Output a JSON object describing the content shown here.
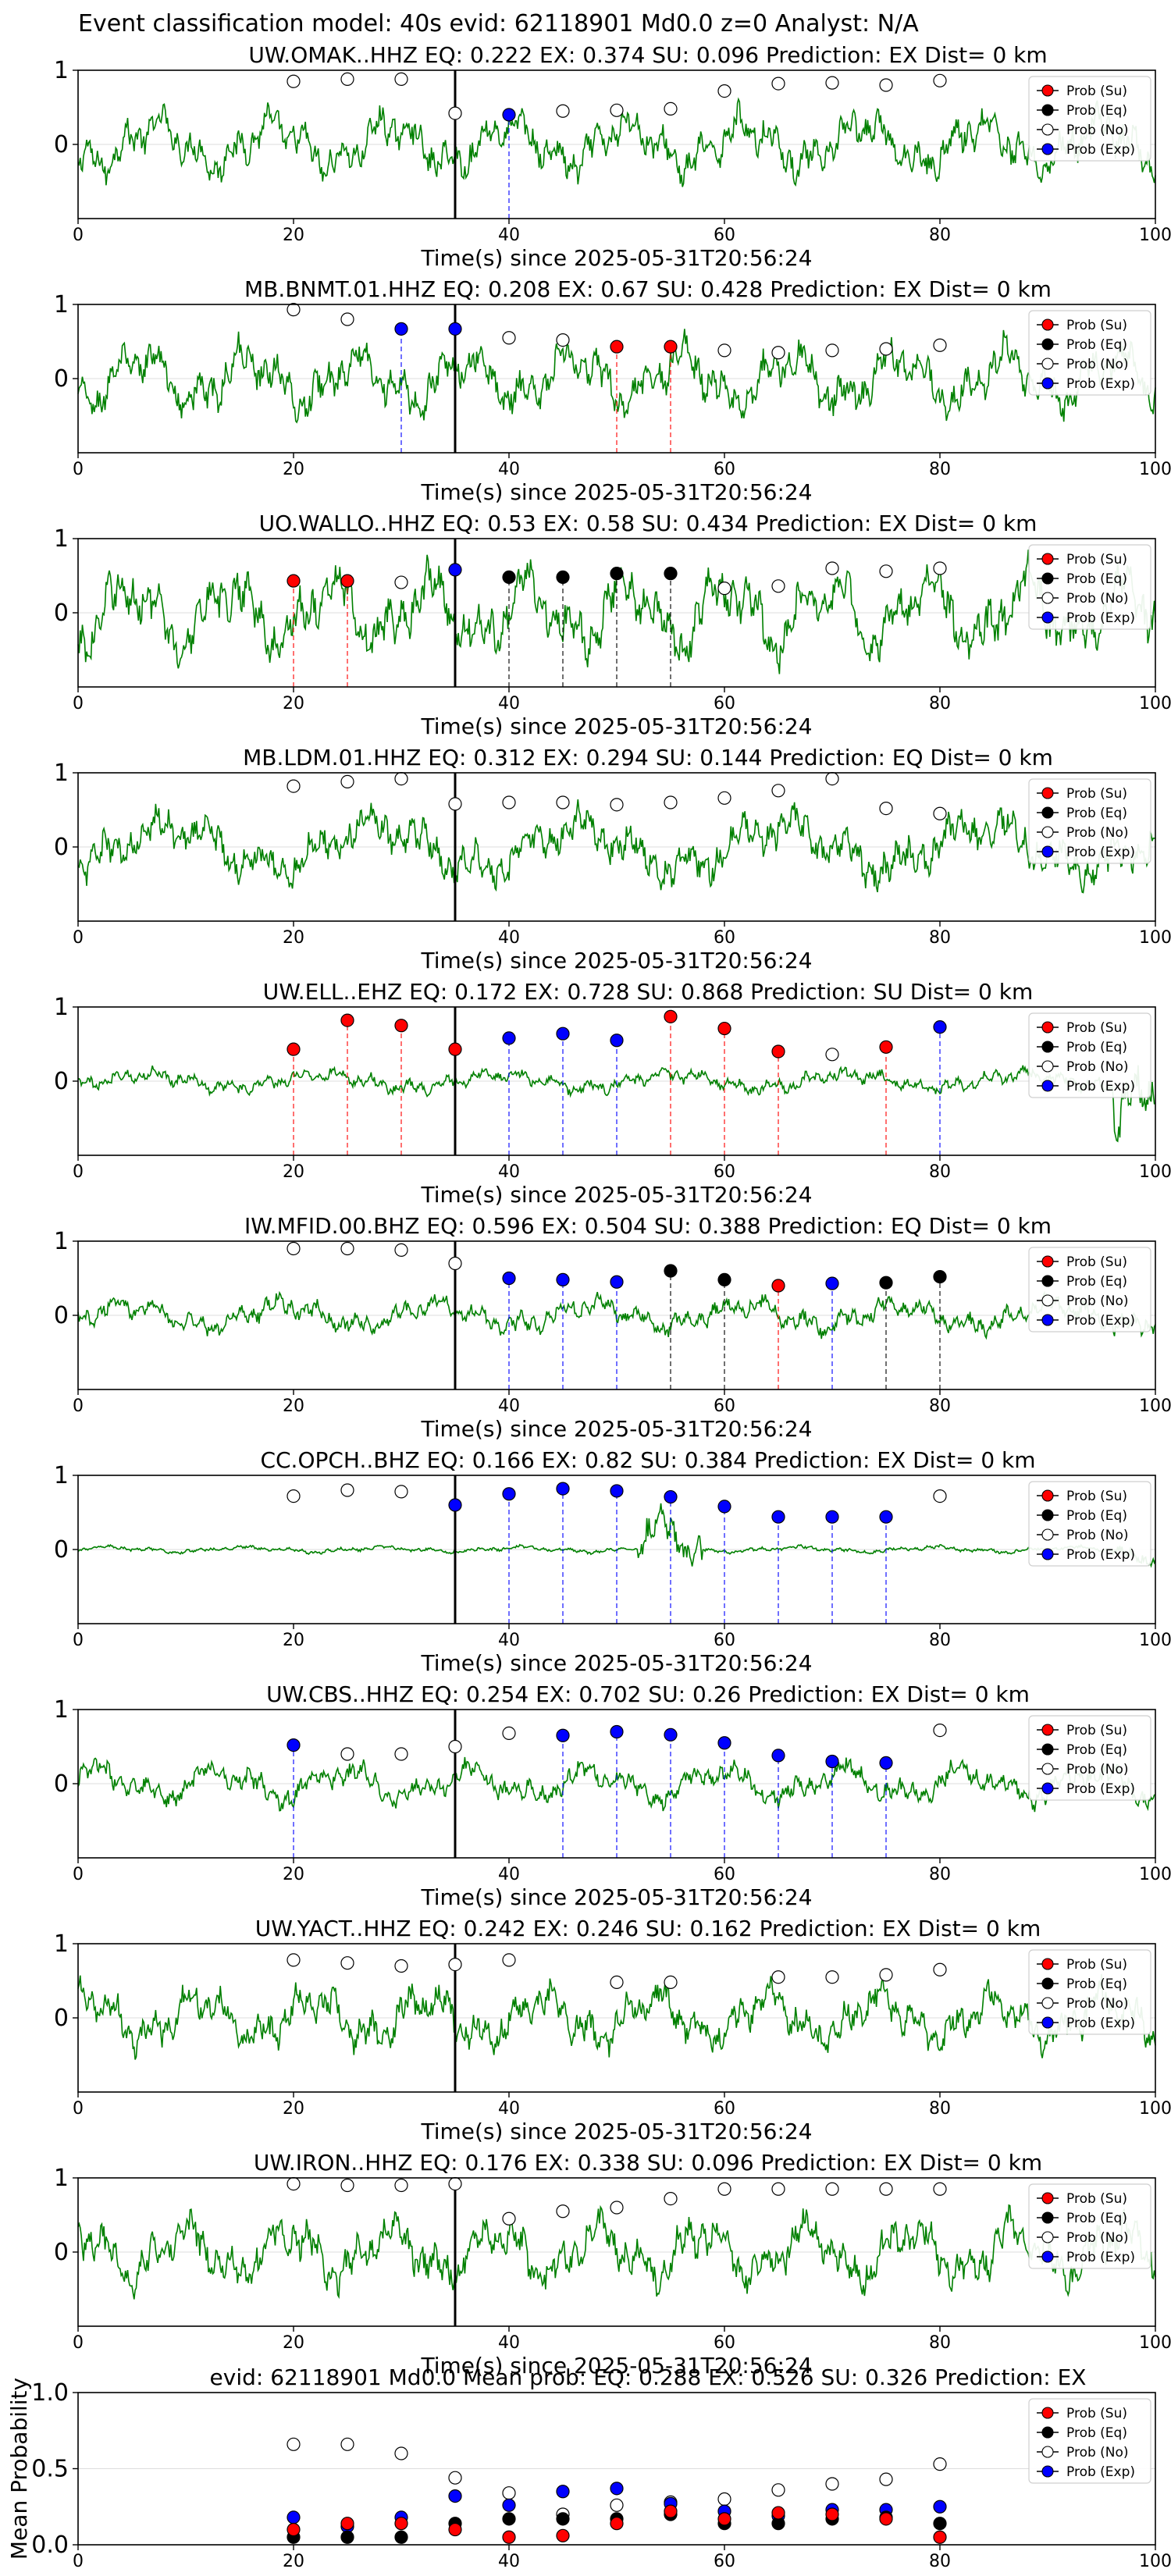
{
  "suptitle": "Event classification model: 40s evid: 62118901 Md0.0 z=0 Analyst: N/A",
  "legend_labels": [
    "Prob (Su)",
    "Prob (Eq)",
    "Prob (No)",
    "Prob (Exp)"
  ],
  "colors": {
    "waveform": "#008000",
    "su": "#ff0000",
    "eq": "#000000",
    "no": "#ffffff",
    "exp": "#0000ff",
    "grid": "#dddddd"
  },
  "chart_data": [
    {
      "type": "line",
      "title": "UW.OMAK..HHZ   EQ: 0.222  EX: 0.374  SU: 0.096   Prediction: EX    Dist= 0 km",
      "xlabel": "Time(s) since 2025-05-31T20:56:24",
      "xlim": [
        0,
        100
      ],
      "ylim": [
        -1,
        1
      ],
      "xticks": [
        0,
        20,
        40,
        60,
        80,
        100
      ],
      "yticks": [
        0,
        1
      ],
      "grid": "horizontal",
      "legend": "top-right",
      "waveform_scale": 0.55,
      "event_line_x": 35,
      "points": [
        {
          "x": 20,
          "y": 0.85,
          "cls": "no"
        },
        {
          "x": 25,
          "y": 0.88,
          "cls": "no"
        },
        {
          "x": 30,
          "y": 0.88,
          "cls": "no"
        },
        {
          "x": 35,
          "y": 0.42,
          "cls": "no"
        },
        {
          "x": 40,
          "y": 0.4,
          "cls": "exp"
        },
        {
          "x": 45,
          "y": 0.45,
          "cls": "no"
        },
        {
          "x": 50,
          "y": 0.46,
          "cls": "no"
        },
        {
          "x": 55,
          "y": 0.48,
          "cls": "no"
        },
        {
          "x": 60,
          "y": 0.72,
          "cls": "no"
        },
        {
          "x": 65,
          "y": 0.82,
          "cls": "no"
        },
        {
          "x": 70,
          "y": 0.83,
          "cls": "no"
        },
        {
          "x": 75,
          "y": 0.8,
          "cls": "no"
        },
        {
          "x": 80,
          "y": 0.86,
          "cls": "no"
        }
      ]
    },
    {
      "type": "line",
      "title": "MB.BNMT.01.HHZ   EQ: 0.208  EX: 0.67  SU: 0.428   Prediction: EX    Dist= 0 km",
      "xlabel": "Time(s) since 2025-05-31T20:56:24",
      "xlim": [
        0,
        100
      ],
      "ylim": [
        -1,
        1
      ],
      "xticks": [
        0,
        20,
        40,
        60,
        80,
        100
      ],
      "yticks": [
        0,
        1
      ],
      "grid": "horizontal",
      "legend": "top-right",
      "waveform_scale": 0.6,
      "event_line_x": 35,
      "points": [
        {
          "x": 20,
          "y": 0.93,
          "cls": "no"
        },
        {
          "x": 25,
          "y": 0.8,
          "cls": "no"
        },
        {
          "x": 30,
          "y": 0.67,
          "cls": "exp"
        },
        {
          "x": 35,
          "y": 0.67,
          "cls": "exp"
        },
        {
          "x": 40,
          "y": 0.55,
          "cls": "no"
        },
        {
          "x": 45,
          "y": 0.52,
          "cls": "no"
        },
        {
          "x": 50,
          "y": 0.43,
          "cls": "su"
        },
        {
          "x": 55,
          "y": 0.43,
          "cls": "su"
        },
        {
          "x": 60,
          "y": 0.38,
          "cls": "no"
        },
        {
          "x": 65,
          "y": 0.35,
          "cls": "no"
        },
        {
          "x": 70,
          "y": 0.38,
          "cls": "no"
        },
        {
          "x": 75,
          "y": 0.4,
          "cls": "no"
        },
        {
          "x": 80,
          "y": 0.45,
          "cls": "no"
        }
      ]
    },
    {
      "type": "line",
      "title": "UO.WALLO..HHZ   EQ: 0.53  EX: 0.58  SU: 0.434   Prediction: EX    Dist= 0 km",
      "xlabel": "Time(s) since 2025-05-31T20:56:24",
      "xlim": [
        0,
        100
      ],
      "ylim": [
        -1,
        1
      ],
      "xticks": [
        0,
        20,
        40,
        60,
        80,
        100
      ],
      "yticks": [
        0,
        1
      ],
      "grid": "horizontal",
      "legend": "top-right",
      "waveform_scale": 0.75,
      "event_line_x": 35,
      "points": [
        {
          "x": 20,
          "y": 0.43,
          "cls": "su"
        },
        {
          "x": 25,
          "y": 0.43,
          "cls": "su"
        },
        {
          "x": 30,
          "y": 0.41,
          "cls": "no"
        },
        {
          "x": 35,
          "y": 0.58,
          "cls": "exp"
        },
        {
          "x": 40,
          "y": 0.48,
          "cls": "eq"
        },
        {
          "x": 45,
          "y": 0.48,
          "cls": "eq"
        },
        {
          "x": 50,
          "y": 0.53,
          "cls": "eq"
        },
        {
          "x": 55,
          "y": 0.53,
          "cls": "eq"
        },
        {
          "x": 60,
          "y": 0.33,
          "cls": "no"
        },
        {
          "x": 65,
          "y": 0.36,
          "cls": "no"
        },
        {
          "x": 70,
          "y": 0.6,
          "cls": "no"
        },
        {
          "x": 75,
          "y": 0.56,
          "cls": "no"
        },
        {
          "x": 80,
          "y": 0.6,
          "cls": "no"
        }
      ]
    },
    {
      "type": "line",
      "title": "MB.LDM.01.HHZ   EQ: 0.312  EX: 0.294  SU: 0.144   Prediction: EQ    Dist= 0 km",
      "xlabel": "Time(s) since 2025-05-31T20:56:24",
      "xlim": [
        0,
        100
      ],
      "ylim": [
        -1,
        1
      ],
      "xticks": [
        0,
        20,
        40,
        60,
        80,
        100
      ],
      "yticks": [
        0,
        1
      ],
      "grid": "horizontal",
      "legend": "top-right",
      "waveform_scale": 0.6,
      "event_line_x": 35,
      "points": [
        {
          "x": 20,
          "y": 0.82,
          "cls": "no"
        },
        {
          "x": 25,
          "y": 0.88,
          "cls": "no"
        },
        {
          "x": 30,
          "y": 0.92,
          "cls": "no"
        },
        {
          "x": 35,
          "y": 0.58,
          "cls": "no"
        },
        {
          "x": 40,
          "y": 0.6,
          "cls": "no"
        },
        {
          "x": 45,
          "y": 0.6,
          "cls": "no"
        },
        {
          "x": 50,
          "y": 0.57,
          "cls": "no"
        },
        {
          "x": 55,
          "y": 0.6,
          "cls": "no"
        },
        {
          "x": 60,
          "y": 0.66,
          "cls": "no"
        },
        {
          "x": 65,
          "y": 0.76,
          "cls": "no"
        },
        {
          "x": 70,
          "y": 0.92,
          "cls": "no"
        },
        {
          "x": 75,
          "y": 0.52,
          "cls": "no"
        },
        {
          "x": 80,
          "y": 0.45,
          "cls": "no"
        }
      ]
    },
    {
      "type": "line",
      "title": "UW.ELL..EHZ   EQ: 0.172  EX: 0.728  SU: 0.868   Prediction: SU    Dist= 0 km",
      "xlabel": "Time(s) since 2025-05-31T20:56:24",
      "xlim": [
        0,
        100
      ],
      "ylim": [
        -1,
        1
      ],
      "xticks": [
        0,
        20,
        40,
        60,
        80,
        100
      ],
      "yticks": [
        0,
        1
      ],
      "grid": "horizontal",
      "legend": "top-right",
      "waveform_scale": 0.2,
      "event_line_x": 35,
      "points": [
        {
          "x": 20,
          "y": 0.43,
          "cls": "su"
        },
        {
          "x": 25,
          "y": 0.82,
          "cls": "su"
        },
        {
          "x": 30,
          "y": 0.75,
          "cls": "su"
        },
        {
          "x": 35,
          "y": 0.43,
          "cls": "su"
        },
        {
          "x": 40,
          "y": 0.58,
          "cls": "exp"
        },
        {
          "x": 45,
          "y": 0.64,
          "cls": "exp"
        },
        {
          "x": 50,
          "y": 0.55,
          "cls": "exp"
        },
        {
          "x": 55,
          "y": 0.87,
          "cls": "su"
        },
        {
          "x": 60,
          "y": 0.71,
          "cls": "su"
        },
        {
          "x": 65,
          "y": 0.4,
          "cls": "su"
        },
        {
          "x": 70,
          "y": 0.36,
          "cls": "no"
        },
        {
          "x": 75,
          "y": 0.46,
          "cls": "su"
        },
        {
          "x": 80,
          "y": 0.73,
          "cls": "exp"
        }
      ]
    },
    {
      "type": "line",
      "title": "IW.MFID.00.BHZ   EQ: 0.596  EX: 0.504  SU: 0.388   Prediction: EQ    Dist= 0 km",
      "xlabel": "Time(s) since 2025-05-31T20:56:24",
      "xlim": [
        0,
        100
      ],
      "ylim": [
        -1,
        1
      ],
      "xticks": [
        0,
        20,
        40,
        60,
        80,
        100
      ],
      "yticks": [
        0,
        1
      ],
      "grid": "horizontal",
      "legend": "top-right",
      "waveform_scale": 0.3,
      "event_line_x": 35,
      "points": [
        {
          "x": 20,
          "y": 0.9,
          "cls": "no"
        },
        {
          "x": 25,
          "y": 0.9,
          "cls": "no"
        },
        {
          "x": 30,
          "y": 0.88,
          "cls": "no"
        },
        {
          "x": 35,
          "y": 0.7,
          "cls": "no"
        },
        {
          "x": 40,
          "y": 0.5,
          "cls": "exp"
        },
        {
          "x": 45,
          "y": 0.48,
          "cls": "exp"
        },
        {
          "x": 50,
          "y": 0.45,
          "cls": "exp"
        },
        {
          "x": 55,
          "y": 0.6,
          "cls": "eq"
        },
        {
          "x": 60,
          "y": 0.48,
          "cls": "eq"
        },
        {
          "x": 65,
          "y": 0.4,
          "cls": "su"
        },
        {
          "x": 70,
          "y": 0.43,
          "cls": "exp"
        },
        {
          "x": 75,
          "y": 0.44,
          "cls": "eq"
        },
        {
          "x": 80,
          "y": 0.52,
          "cls": "eq"
        }
      ]
    },
    {
      "type": "line",
      "title": "CC.OPCH..BHZ   EQ: 0.166  EX: 0.82  SU: 0.384   Prediction: EX    Dist= 0 km",
      "xlabel": "Time(s) since 2025-05-31T20:56:24",
      "xlim": [
        0,
        100
      ],
      "ylim": [
        -1,
        1
      ],
      "xticks": [
        0,
        20,
        40,
        60,
        80,
        100
      ],
      "yticks": [
        0,
        1
      ],
      "grid": "horizontal",
      "legend": "top-right",
      "waveform_scale": 0.06,
      "event_line_x": 35,
      "points": [
        {
          "x": 20,
          "y": 0.72,
          "cls": "no"
        },
        {
          "x": 25,
          "y": 0.8,
          "cls": "no"
        },
        {
          "x": 30,
          "y": 0.78,
          "cls": "no"
        },
        {
          "x": 35,
          "y": 0.6,
          "cls": "exp"
        },
        {
          "x": 40,
          "y": 0.75,
          "cls": "exp"
        },
        {
          "x": 45,
          "y": 0.82,
          "cls": "exp"
        },
        {
          "x": 50,
          "y": 0.79,
          "cls": "exp"
        },
        {
          "x": 55,
          "y": 0.71,
          "cls": "exp"
        },
        {
          "x": 60,
          "y": 0.58,
          "cls": "exp"
        },
        {
          "x": 65,
          "y": 0.44,
          "cls": "exp"
        },
        {
          "x": 70,
          "y": 0.44,
          "cls": "exp"
        },
        {
          "x": 75,
          "y": 0.44,
          "cls": "exp"
        },
        {
          "x": 80,
          "y": 0.72,
          "cls": "no"
        }
      ]
    },
    {
      "type": "line",
      "title": "UW.CBS..HHZ   EQ: 0.254  EX: 0.702  SU: 0.26   Prediction: EX    Dist= 0 km",
      "xlabel": "Time(s) since 2025-05-31T20:56:24",
      "xlim": [
        0,
        100
      ],
      "ylim": [
        -1,
        1
      ],
      "xticks": [
        0,
        20,
        40,
        60,
        80,
        100
      ],
      "yticks": [
        0,
        1
      ],
      "grid": "horizontal",
      "legend": "top-right",
      "waveform_scale": 0.35,
      "event_line_x": 35,
      "points": [
        {
          "x": 20,
          "y": 0.52,
          "cls": "exp"
        },
        {
          "x": 25,
          "y": 0.4,
          "cls": "no"
        },
        {
          "x": 30,
          "y": 0.4,
          "cls": "no"
        },
        {
          "x": 35,
          "y": 0.5,
          "cls": "no"
        },
        {
          "x": 40,
          "y": 0.68,
          "cls": "no"
        },
        {
          "x": 45,
          "y": 0.65,
          "cls": "exp"
        },
        {
          "x": 50,
          "y": 0.7,
          "cls": "exp"
        },
        {
          "x": 55,
          "y": 0.66,
          "cls": "exp"
        },
        {
          "x": 60,
          "y": 0.55,
          "cls": "exp"
        },
        {
          "x": 65,
          "y": 0.38,
          "cls": "exp"
        },
        {
          "x": 70,
          "y": 0.3,
          "cls": "exp"
        },
        {
          "x": 75,
          "y": 0.28,
          "cls": "exp"
        },
        {
          "x": 80,
          "y": 0.72,
          "cls": "no"
        }
      ]
    },
    {
      "type": "line",
      "title": "UW.YACT..HHZ   EQ: 0.242  EX: 0.246  SU: 0.162   Prediction: EX    Dist= 0 km",
      "xlabel": "Time(s) since 2025-05-31T20:56:24",
      "xlim": [
        0,
        100
      ],
      "ylim": [
        -1,
        1
      ],
      "xticks": [
        0,
        20,
        40,
        60,
        80,
        100
      ],
      "yticks": [
        0,
        1
      ],
      "grid": "horizontal",
      "legend": "top-right",
      "waveform_scale": 0.55,
      "event_line_x": 35,
      "points": [
        {
          "x": 20,
          "y": 0.78,
          "cls": "no"
        },
        {
          "x": 25,
          "y": 0.74,
          "cls": "no"
        },
        {
          "x": 30,
          "y": 0.7,
          "cls": "no"
        },
        {
          "x": 35,
          "y": 0.72,
          "cls": "no"
        },
        {
          "x": 40,
          "y": 0.78,
          "cls": "no"
        },
        {
          "x": 50,
          "y": 0.48,
          "cls": "no"
        },
        {
          "x": 55,
          "y": 0.48,
          "cls": "no"
        },
        {
          "x": 65,
          "y": 0.55,
          "cls": "no"
        },
        {
          "x": 70,
          "y": 0.55,
          "cls": "no"
        },
        {
          "x": 75,
          "y": 0.58,
          "cls": "no"
        },
        {
          "x": 80,
          "y": 0.65,
          "cls": "no"
        }
      ]
    },
    {
      "type": "line",
      "title": "UW.IRON..HHZ   EQ: 0.176  EX: 0.338  SU: 0.096   Prediction: EX    Dist= 0 km",
      "xlabel": "Time(s) since 2025-05-31T20:56:24",
      "xlim": [
        0,
        100
      ],
      "ylim": [
        -1,
        1
      ],
      "xticks": [
        0,
        20,
        40,
        60,
        80,
        100
      ],
      "yticks": [
        0,
        1
      ],
      "grid": "horizontal",
      "legend": "top-right",
      "waveform_scale": 0.6,
      "event_line_x": 35,
      "points": [
        {
          "x": 20,
          "y": 0.92,
          "cls": "no"
        },
        {
          "x": 25,
          "y": 0.9,
          "cls": "no"
        },
        {
          "x": 30,
          "y": 0.9,
          "cls": "no"
        },
        {
          "x": 35,
          "y": 0.92,
          "cls": "no"
        },
        {
          "x": 40,
          "y": 0.45,
          "cls": "no"
        },
        {
          "x": 45,
          "y": 0.55,
          "cls": "no"
        },
        {
          "x": 50,
          "y": 0.6,
          "cls": "no"
        },
        {
          "x": 55,
          "y": 0.72,
          "cls": "no"
        },
        {
          "x": 60,
          "y": 0.85,
          "cls": "no"
        },
        {
          "x": 65,
          "y": 0.85,
          "cls": "no"
        },
        {
          "x": 70,
          "y": 0.85,
          "cls": "no"
        },
        {
          "x": 75,
          "y": 0.85,
          "cls": "no"
        },
        {
          "x": 80,
          "y": 0.85,
          "cls": "no"
        }
      ]
    },
    {
      "type": "scatter",
      "title": "evid: 62118901  Md0.0   Mean prob:   EQ: 0.288  EX: 0.526  SU: 0.326   Prediction: EX",
      "ylabel": "Mean Probability",
      "xlim": [
        0,
        100
      ],
      "ylim": [
        0,
        1
      ],
      "xticks": [
        0,
        20,
        40,
        60,
        80,
        100
      ],
      "yticks": [
        0.0,
        0.5,
        1.0
      ],
      "ytick_labels": [
        "0.0",
        "0.5",
        "1.0"
      ],
      "grid": "horizontal",
      "legend": "top-right",
      "x": [
        20,
        25,
        30,
        35,
        40,
        45,
        50,
        55,
        60,
        65,
        70,
        75,
        80
      ],
      "series": [
        {
          "cls": "no",
          "values": [
            0.66,
            0.66,
            0.6,
            0.44,
            0.34,
            0.2,
            0.26,
            0.28,
            0.3,
            0.36,
            0.4,
            0.43,
            0.53
          ]
        },
        {
          "cls": "exp",
          "values": [
            0.18,
            0.12,
            0.18,
            0.32,
            0.26,
            0.35,
            0.37,
            0.27,
            0.22,
            0.19,
            0.23,
            0.23,
            0.25
          ]
        },
        {
          "cls": "eq",
          "values": [
            0.05,
            0.05,
            0.05,
            0.14,
            0.17,
            0.17,
            0.17,
            0.2,
            0.14,
            0.14,
            0.17,
            0.18,
            0.14
          ]
        },
        {
          "cls": "su",
          "values": [
            0.1,
            0.14,
            0.14,
            0.1,
            0.05,
            0.06,
            0.14,
            0.22,
            0.17,
            0.21,
            0.2,
            0.17,
            0.05
          ]
        }
      ]
    }
  ]
}
